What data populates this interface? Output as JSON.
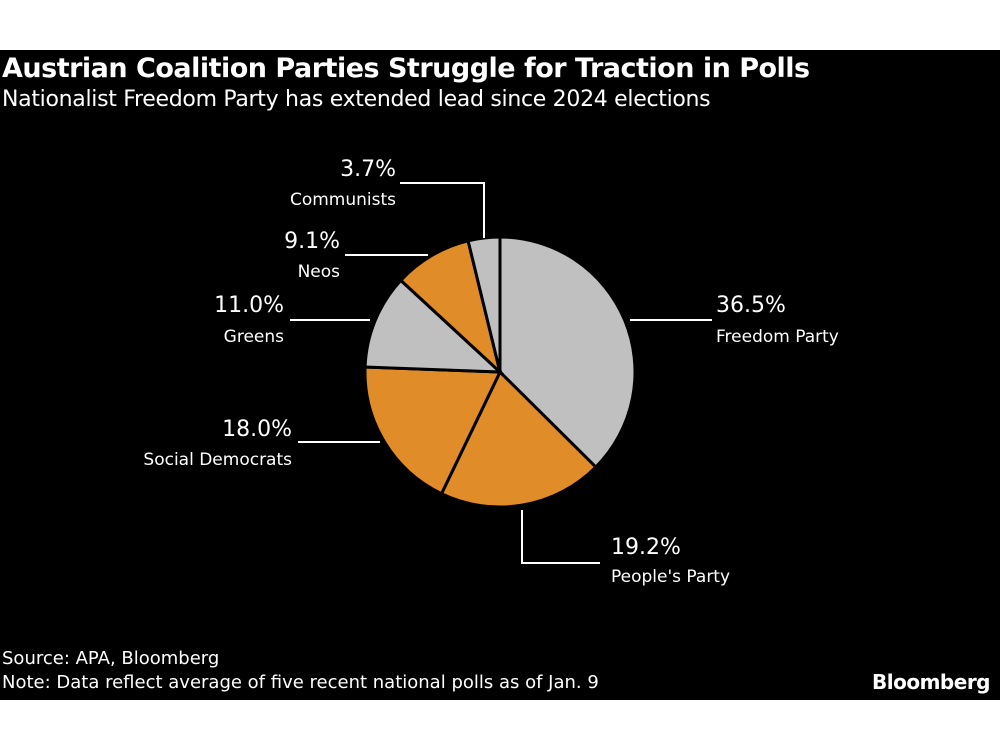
{
  "title": "Austrian Coalition Parties Struggle for Traction in Polls",
  "subtitle": "Nationalist Freedom Party has extended lead since 2024 elections",
  "source": "Source: APA, Bloomberg",
  "note": "Note: Data reflect average of five recent national polls as of Jan. 9",
  "logo": "Bloomberg",
  "chart_data": {
    "type": "pie",
    "title": "Austrian Coalition Parties Struggle for Traction in Polls",
    "slices": [
      {
        "name": "Freedom Party",
        "value": 36.5,
        "label": "36.5%",
        "color": "#c0c0c0"
      },
      {
        "name": "People's Party",
        "value": 19.2,
        "label": "19.2%",
        "color": "#e08c28"
      },
      {
        "name": "Social Democrats",
        "value": 18.0,
        "label": "18.0%",
        "color": "#e08c28"
      },
      {
        "name": "Greens",
        "value": 11.0,
        "label": "11.0%",
        "color": "#c0c0c0"
      },
      {
        "name": "Neos",
        "value": 9.1,
        "label": "9.1%",
        "color": "#e08c28"
      },
      {
        "name": "Communists",
        "value": 3.7,
        "label": "3.7%",
        "color": "#c0c0c0"
      }
    ],
    "start_angle": "top",
    "direction": "clockwise"
  }
}
